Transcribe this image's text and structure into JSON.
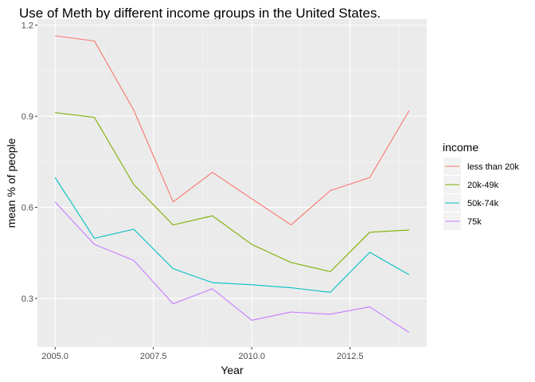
{
  "chart_data": {
    "type": "line",
    "title": "Use of Meth by different income groups in the United States.",
    "xlabel": "Year",
    "ylabel": "mean % of people",
    "xlim": [
      2004.55,
      2014.45
    ],
    "ylim": [
      0.14,
      1.22
    ],
    "x_ticks": [
      2005.0,
      2007.5,
      2010.0,
      2012.5
    ],
    "x_tick_labels": [
      "2005.0",
      "2007.5",
      "2010.0",
      "2012.5"
    ],
    "y_ticks": [
      0.3,
      0.6,
      0.9,
      1.2
    ],
    "y_tick_labels": [
      "0.3",
      "0.6",
      "0.9",
      "1.2"
    ],
    "grid": true,
    "legend_title": "income",
    "legend_position": "right",
    "x": [
      2005,
      2006,
      2007,
      2008,
      2009,
      2010,
      2011,
      2012,
      2013,
      2014
    ],
    "series": [
      {
        "name": "less than 20k",
        "color": "#F8766D",
        "values": [
          1.165,
          1.148,
          0.92,
          0.618,
          0.715,
          0.628,
          0.542,
          0.655,
          0.698,
          0.918
        ]
      },
      {
        "name": "20k-49k",
        "color": "#7CAE00",
        "values": [
          0.912,
          0.896,
          0.675,
          0.542,
          0.572,
          0.478,
          0.418,
          0.388,
          0.518,
          0.525
        ]
      },
      {
        "name": "50k-74k",
        "color": "#00BFC4",
        "values": [
          0.698,
          0.498,
          0.528,
          0.398,
          0.352,
          0.345,
          0.335,
          0.32,
          0.452,
          0.378
        ]
      },
      {
        "name": "75k",
        "color": "#C77CFF",
        "values": [
          0.618,
          0.478,
          0.425,
          0.282,
          0.332,
          0.228,
          0.255,
          0.248,
          0.272,
          0.188
        ]
      }
    ]
  }
}
